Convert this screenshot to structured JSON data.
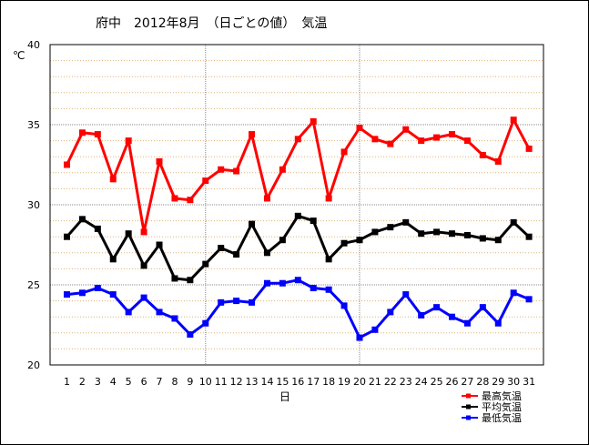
{
  "chart_data": {
    "type": "line",
    "title": "府中　2012年8月　（日ごとの値）　気温",
    "ylabel": "℃",
    "xlabel": "日",
    "ylim": [
      20,
      40
    ],
    "yticks": [
      20,
      25,
      30,
      35,
      40
    ],
    "grid": "dotted horizontal every 1 unit; dotted vertical at 10 and 20",
    "legend_position": "bottom-right",
    "categories": [
      1,
      2,
      3,
      4,
      5,
      6,
      7,
      8,
      9,
      10,
      11,
      12,
      13,
      14,
      15,
      16,
      17,
      18,
      19,
      20,
      21,
      22,
      23,
      24,
      25,
      26,
      27,
      28,
      29,
      30,
      31
    ],
    "series": [
      {
        "name": "最高気温",
        "color": "#ff0000",
        "values": [
          32.5,
          34.5,
          34.4,
          31.6,
          34.0,
          28.3,
          32.7,
          30.4,
          30.3,
          31.5,
          32.2,
          32.1,
          34.4,
          30.4,
          32.2,
          34.1,
          35.2,
          30.4,
          33.3,
          34.8,
          34.1,
          33.8,
          34.7,
          34.0,
          34.2,
          34.4,
          34.0,
          33.1,
          32.7,
          35.3,
          33.5
        ]
      },
      {
        "name": "平均気温",
        "color": "#000000",
        "values": [
          28.0,
          29.1,
          28.5,
          26.6,
          28.2,
          26.2,
          27.5,
          25.4,
          25.3,
          26.3,
          27.3,
          26.9,
          28.8,
          27.0,
          27.8,
          29.3,
          29.0,
          26.6,
          27.6,
          27.8,
          28.3,
          28.6,
          28.9,
          28.2,
          28.3,
          28.2,
          28.1,
          27.9,
          27.8,
          28.9,
          28.0
        ]
      },
      {
        "name": "最低気温",
        "color": "#0000ff",
        "values": [
          24.4,
          24.5,
          24.8,
          24.4,
          23.3,
          24.2,
          23.3,
          22.9,
          21.9,
          22.6,
          23.9,
          24.0,
          23.9,
          25.1,
          25.1,
          25.3,
          24.8,
          24.7,
          23.7,
          21.7,
          22.2,
          23.3,
          24.4,
          23.1,
          23.6,
          23.0,
          22.6,
          23.6,
          22.6,
          24.5,
          24.1
        ]
      }
    ]
  }
}
